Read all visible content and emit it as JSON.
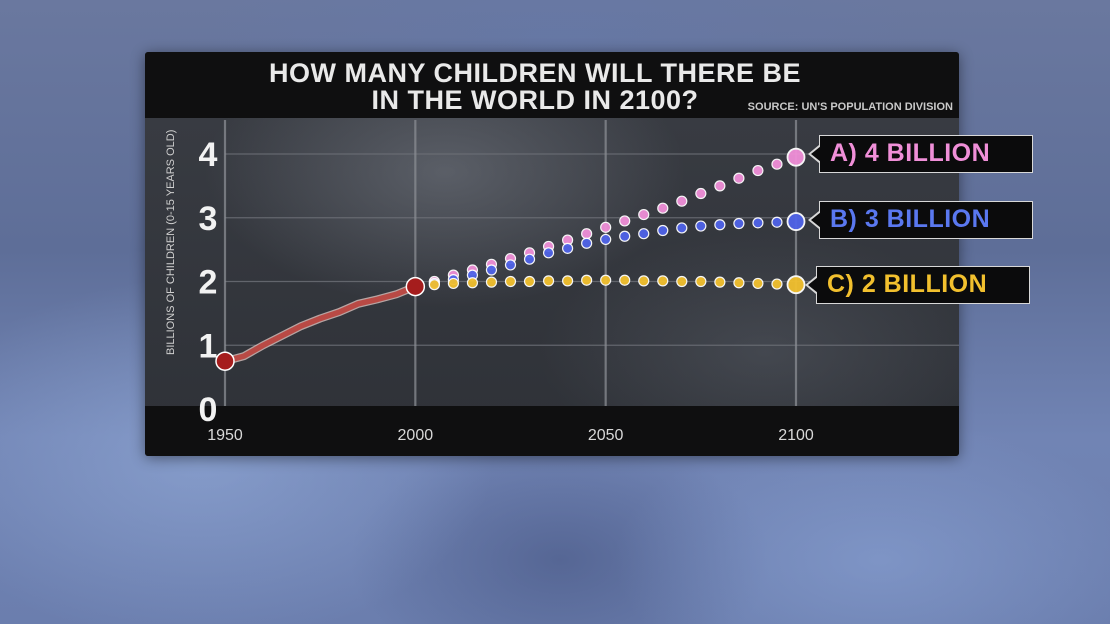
{
  "chart_data": {
    "type": "line",
    "title": "HOW MANY CHILDREN WILL THERE BE IN THE WORLD IN 2100?",
    "title_lines": [
      "HOW MANY CHILDREN WILL THERE BE",
      "IN THE WORLD IN 2100?"
    ],
    "source": "SOURCE: UN'S POPULATION DIVISION",
    "ylabel": "BILLIONS OF CHILDREN (0-15 YEARS OLD)",
    "xlabel": "",
    "xlim": [
      1950,
      2100
    ],
    "ylim": [
      0,
      4
    ],
    "x_ticks": [
      "1950",
      "2000",
      "2050",
      "2100"
    ],
    "x_tick_values": [
      1950,
      2000,
      2050,
      2100
    ],
    "y_ticks": [
      "0",
      "1",
      "2",
      "3",
      "4"
    ],
    "y_tick_values": [
      0,
      1,
      2,
      3,
      4
    ],
    "grid": true,
    "historical": {
      "color": "#b94a45",
      "x": [
        1950,
        1955,
        1960,
        1965,
        1970,
        1975,
        1980,
        1985,
        1990,
        1995,
        2000
      ],
      "y": [
        0.75,
        0.83,
        1.0,
        1.15,
        1.3,
        1.42,
        1.52,
        1.65,
        1.72,
        1.8,
        1.92
      ]
    },
    "series": [
      {
        "name": "A) 4 BILLION",
        "color": "#f08fd8",
        "x": [
          2000,
          2005,
          2010,
          2015,
          2020,
          2025,
          2030,
          2035,
          2040,
          2045,
          2050,
          2055,
          2060,
          2065,
          2070,
          2075,
          2080,
          2085,
          2090,
          2095,
          2100
        ],
        "y": [
          1.92,
          2.0,
          2.1,
          2.18,
          2.27,
          2.36,
          2.45,
          2.55,
          2.65,
          2.75,
          2.85,
          2.95,
          3.05,
          3.15,
          3.26,
          3.38,
          3.5,
          3.62,
          3.74,
          3.84,
          3.95
        ]
      },
      {
        "name": "B) 3 BILLION",
        "color": "#4f63e8",
        "x": [
          2000,
          2005,
          2010,
          2015,
          2020,
          2025,
          2030,
          2035,
          2040,
          2045,
          2050,
          2055,
          2060,
          2065,
          2070,
          2075,
          2080,
          2085,
          2090,
          2095,
          2100
        ],
        "y": [
          1.92,
          1.97,
          2.03,
          2.1,
          2.18,
          2.26,
          2.35,
          2.45,
          2.52,
          2.6,
          2.66,
          2.71,
          2.75,
          2.8,
          2.84,
          2.87,
          2.89,
          2.91,
          2.92,
          2.93,
          2.94
        ]
      },
      {
        "name": "C) 2 BILLION",
        "color": "#f2c02e",
        "x": [
          2000,
          2005,
          2010,
          2015,
          2020,
          2025,
          2030,
          2035,
          2040,
          2045,
          2050,
          2055,
          2060,
          2065,
          2070,
          2075,
          2080,
          2085,
          2090,
          2095,
          2100
        ],
        "y": [
          1.92,
          1.95,
          1.97,
          1.98,
          1.99,
          2.0,
          2.0,
          2.01,
          2.01,
          2.02,
          2.02,
          2.02,
          2.01,
          2.01,
          2.0,
          2.0,
          1.99,
          1.98,
          1.97,
          1.96,
          1.95
        ]
      }
    ]
  }
}
